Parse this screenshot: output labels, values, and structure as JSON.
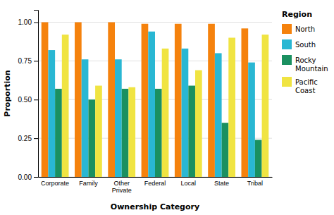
{
  "chart_data": {
    "type": "bar",
    "categories": [
      "Corporate",
      "Family",
      "Other\nPrivate",
      "Federal",
      "Local",
      "State",
      "Tribal"
    ],
    "series": [
      {
        "name": "North",
        "color": "#F5820D",
        "values": [
          1.0,
          1.0,
          1.0,
          0.99,
          0.99,
          0.99,
          0.96
        ]
      },
      {
        "name": "South",
        "color": "#29B7D3",
        "values": [
          0.82,
          0.76,
          0.76,
          0.94,
          0.83,
          0.8,
          0.74
        ]
      },
      {
        "name": "Rocky\nMountain",
        "color": "#1A9060",
        "values": [
          0.57,
          0.5,
          0.57,
          0.57,
          0.59,
          0.35,
          0.24
        ]
      },
      {
        "name": "Pacific\nCoast",
        "color": "#F0E442",
        "values": [
          0.92,
          0.59,
          0.58,
          0.83,
          0.69,
          0.9,
          0.92
        ]
      }
    ],
    "xlabel": "Ownership Category",
    "ylabel": "Proportion",
    "legend_title": "Region",
    "ylim": [
      0.0,
      1.08
    ],
    "yticks": [
      {
        "value": 0.0,
        "label": "0.00"
      },
      0.25,
      {
        "value": 0.5,
        "label": "0.50"
      },
      0.75,
      {
        "value": 1.0,
        "label": "1.00"
      }
    ],
    "grid": true,
    "legend": "right"
  }
}
